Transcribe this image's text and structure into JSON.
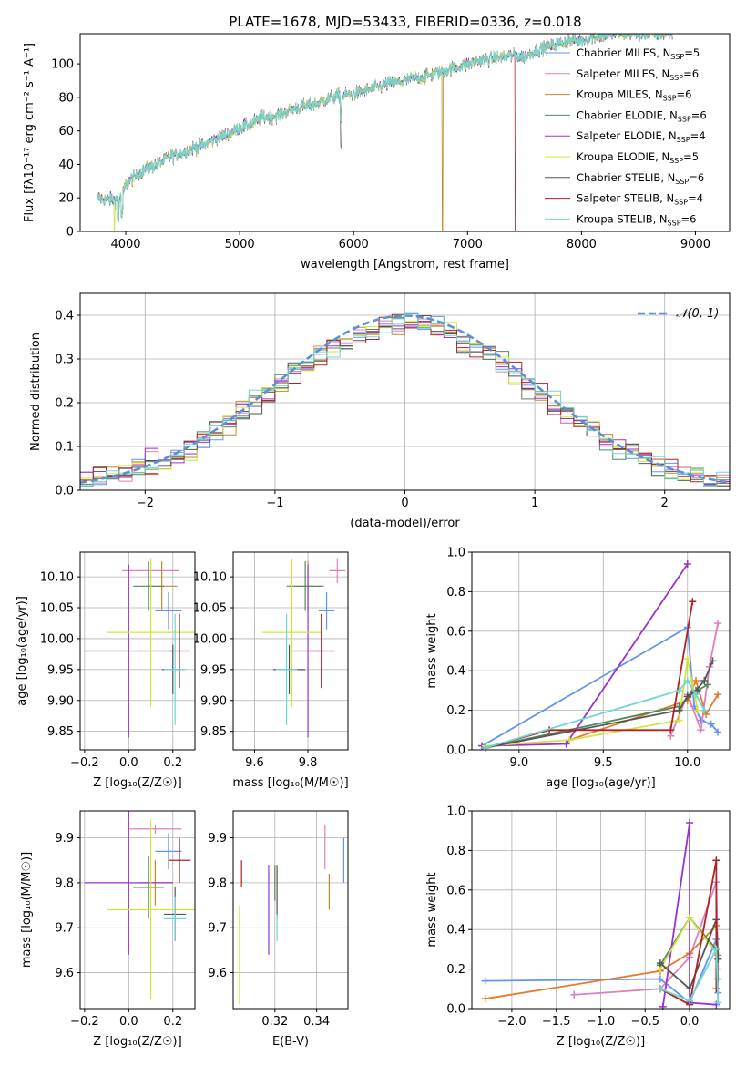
{
  "figure": {
    "title": "PLATE=1678, MJD=53433, FIBERID=0336, z=0.018"
  },
  "colors": {
    "Chabrier MILES": "#6495ed",
    "Salpeter MILES": "#e07ec0",
    "Kroupa MILES": "#c48a2a",
    "Chabrier ELODIE": "#4f8a5f",
    "Salpeter ELODIE": "#9932cc",
    "Kroupa ELODIE": "#d4e43a",
    "Chabrier STELIB": "#555555",
    "Salpeter STELIB": "#b22222",
    "Kroupa STELIB": "#6fd6d6",
    "orange": "#e8782a"
  },
  "chart_data": [
    {
      "id": "spectrum",
      "type": "line",
      "title": "PLATE=1678, MJD=53433, FIBERID=0336, z=0.018",
      "xlabel": "wavelength [Angstrom, rest frame]",
      "ylabel": "Flux [fλ10⁻¹⁷ erg cm⁻² s⁻¹ A⁻¹]",
      "xlim": [
        3600,
        9300
      ],
      "ylim": [
        0,
        118
      ],
      "xticks": [
        "4000",
        "5000",
        "6000",
        "7000",
        "8000",
        "9000"
      ],
      "yticks": [
        "0",
        "20",
        "40",
        "60",
        "80",
        "100"
      ],
      "legend_position": "top-right",
      "legend": [
        {
          "label": "Chabrier MILES, N",
          "sub": "SSP",
          "tail": "=5"
        },
        {
          "label": "Salpeter MILES, N",
          "sub": "SSP",
          "tail": "=6"
        },
        {
          "label": "Kroupa MILES, N",
          "sub": "SSP",
          "tail": "=6"
        },
        {
          "label": "Chabrier ELODIE, N",
          "sub": "SSP",
          "tail": "=6"
        },
        {
          "label": "Salpeter ELODIE, N",
          "sub": "SSP",
          "tail": "=4"
        },
        {
          "label": "Kroupa ELODIE, N",
          "sub": "SSP",
          "tail": "=5"
        },
        {
          "label": "Chabrier STELIB, N",
          "sub": "SSP",
          "tail": "=6"
        },
        {
          "label": "Salpeter STELIB, N",
          "sub": "SSP",
          "tail": "=4"
        },
        {
          "label": "Kroupa STELIB, N",
          "sub": "SSP",
          "tail": "=6"
        }
      ],
      "continuum": {
        "x": [
          3750,
          3850,
          3950,
          4000,
          4100,
          4200,
          4300,
          4400,
          4500,
          4600,
          4700,
          4800,
          4900,
          5000,
          5100,
          5200,
          5300,
          5400,
          5500,
          5600,
          5700,
          5800,
          5900,
          6000,
          6100,
          6200,
          6300,
          6400,
          6500,
          6600,
          6700,
          6800,
          6900,
          7000,
          7100,
          7200,
          7300,
          7400,
          7500,
          7600,
          7700,
          7800,
          7900,
          8000,
          8100,
          8200,
          8300,
          8400,
          8500,
          8600,
          8700,
          8800
        ],
        "y": [
          20,
          19,
          19,
          28,
          34,
          38,
          41,
          45,
          47,
          50,
          52,
          56,
          58,
          62,
          64,
          68,
          69,
          71,
          74,
          75,
          77,
          80,
          81,
          82,
          84,
          86,
          88,
          89,
          91,
          92,
          94,
          96,
          98,
          100,
          102,
          103,
          104,
          105,
          104,
          108,
          110,
          112,
          114,
          114,
          116,
          117,
          118,
          118,
          118,
          118,
          118,
          118
        ]
      },
      "dips": [
        {
          "series": "Kroupa ELODIE",
          "x": 3900,
          "y": 0
        },
        {
          "series": "Kroupa MILES",
          "x": 6780,
          "y": 0
        },
        {
          "series": "Salpeter STELIB",
          "x": 7420,
          "y": 0
        }
      ]
    },
    {
      "id": "residuals",
      "type": "histogram",
      "xlabel": "(data-model)/error",
      "ylabel": "Normed distribution",
      "xlim": [
        -2.5,
        2.5
      ],
      "ylim": [
        0,
        0.45
      ],
      "xticks": [
        "−2",
        "−1",
        "0",
        "1",
        "2"
      ],
      "yticks": [
        "0.0",
        "0.1",
        "0.2",
        "0.3",
        "0.4"
      ],
      "grid": true,
      "legend_position": "top-right",
      "reference": {
        "label": "𝒩(0, 1)",
        "mean": 0,
        "sigma": 1
      },
      "bin_width": 0.1
    },
    {
      "id": "age-vs-Z",
      "type": "scatter",
      "xlabel": "Z [log₁₀(Z/Z☉)]",
      "ylabel": "age  [log₁₀(age/yr)]",
      "xlim": [
        -0.22,
        0.3
      ],
      "ylim": [
        9.82,
        10.14
      ],
      "xticks": [
        "−0.2",
        "0.0",
        "0.2"
      ],
      "yticks": [
        "9.85",
        "9.90",
        "9.95",
        "10.00",
        "10.05",
        "10.10"
      ],
      "grid": true,
      "points": [
        {
          "series": "Chabrier MILES",
          "x": 0.18,
          "xerr": 0.06,
          "y": 10.045,
          "yerr": 0.03
        },
        {
          "series": "Salpeter MILES",
          "x": 0.1,
          "xerr": 0.13,
          "y": 10.11,
          "yerr": 0.02
        },
        {
          "series": "Kroupa MILES",
          "x": 0.15,
          "xerr": 0.07,
          "y": 10.085,
          "yerr": 0.04
        },
        {
          "series": "Chabrier ELODIE",
          "x": 0.09,
          "xerr": 0.07,
          "y": 10.085,
          "yerr": 0.04
        },
        {
          "series": "Salpeter ELODIE",
          "x": 0.0,
          "xerr": 0.2,
          "y": 9.98,
          "yerr": 0.14
        },
        {
          "series": "Kroupa ELODIE",
          "x": 0.1,
          "xerr": 0.2,
          "y": 10.01,
          "yerr": 0.12
        },
        {
          "series": "Chabrier STELIB",
          "x": 0.2,
          "xerr": 0.05,
          "y": 9.95,
          "yerr": 0.04
        },
        {
          "series": "Salpeter STELIB",
          "x": 0.23,
          "xerr": 0.05,
          "y": 9.98,
          "yerr": 0.06
        },
        {
          "series": "Kroupa STELIB",
          "x": 0.21,
          "xerr": 0.05,
          "y": 9.95,
          "yerr": 0.09
        }
      ]
    },
    {
      "id": "age-vs-mass",
      "type": "scatter",
      "xlabel": "mass [log₁₀(M/M☉)]",
      "ylabel": "",
      "xlim": [
        9.52,
        9.95
      ],
      "ylim": [
        9.82,
        10.14
      ],
      "xticks": [
        "9.6",
        "9.8"
      ],
      "yticks": [
        "9.85",
        "9.90",
        "9.95",
        "10.00",
        "10.05",
        "10.10"
      ],
      "grid": true,
      "points": [
        {
          "series": "Chabrier MILES",
          "x": 9.87,
          "xerr": 0.03,
          "y": 10.045,
          "yerr": 0.03
        },
        {
          "series": "Salpeter MILES",
          "x": 9.91,
          "xerr": 0.03,
          "y": 10.11,
          "yerr": 0.02
        },
        {
          "series": "Kroupa MILES",
          "x": 9.8,
          "xerr": 0.05,
          "y": 10.085,
          "yerr": 0.04
        },
        {
          "series": "Chabrier ELODIE",
          "x": 9.79,
          "xerr": 0.07,
          "y": 10.085,
          "yerr": 0.04
        },
        {
          "series": "Salpeter ELODIE",
          "x": 9.8,
          "xerr": 0.06,
          "y": 9.98,
          "yerr": 0.14
        },
        {
          "series": "Kroupa ELODIE",
          "x": 9.74,
          "xerr": 0.11,
          "y": 10.01,
          "yerr": 0.12
        },
        {
          "series": "Chabrier STELIB",
          "x": 9.73,
          "xerr": 0.06,
          "y": 9.95,
          "yerr": 0.04
        },
        {
          "series": "Salpeter STELIB",
          "x": 9.85,
          "xerr": 0.05,
          "y": 9.98,
          "yerr": 0.06
        },
        {
          "series": "Kroupa STELIB",
          "x": 9.72,
          "xerr": 0.04,
          "y": 9.95,
          "yerr": 0.09
        }
      ]
    },
    {
      "id": "weight-vs-age",
      "type": "line",
      "xlabel": "age  [log₁₀(age/yr)]",
      "ylabel": "mass weight",
      "xlim": [
        8.72,
        10.25
      ],
      "ylim": [
        0,
        1.0
      ],
      "xticks": [
        "9.0",
        "9.5",
        "10.0"
      ],
      "yticks": [
        "0.0",
        "0.2",
        "0.4",
        "0.6",
        "0.8",
        "1.0"
      ],
      "grid": true,
      "series": [
        {
          "name": "Chabrier MILES",
          "x": [
            8.78,
            10.0,
            10.04,
            10.08,
            10.14,
            10.18
          ],
          "y": [
            0.02,
            0.62,
            0.22,
            0.15,
            0.13,
            0.09
          ]
        },
        {
          "name": "Salpeter MILES",
          "x": [
            9.9,
            10.0,
            10.08,
            10.13,
            10.18
          ],
          "y": [
            0.07,
            0.28,
            0.1,
            0.42,
            0.64
          ]
        },
        {
          "name": "Kroupa MILES",
          "x": [
            9.3,
            10.0,
            10.05,
            10.11,
            10.18
          ],
          "y": [
            0.05,
            0.25,
            0.35,
            0.18,
            0.28
          ]
        },
        {
          "name": "Chabrier ELODIE",
          "x": [
            8.8,
            9.95,
            10.02,
            10.06,
            10.12
          ],
          "y": [
            0.01,
            0.22,
            0.28,
            0.3,
            0.33
          ]
        },
        {
          "name": "Salpeter ELODIE",
          "x": [
            8.78,
            9.28,
            10.0
          ],
          "y": [
            0.02,
            0.03,
            0.94
          ]
        },
        {
          "name": "Kroupa ELODIE",
          "x": [
            8.8,
            9.3,
            9.95,
            10.0,
            10.06
          ],
          "y": [
            0.02,
            0.05,
            0.15,
            0.46,
            0.2
          ]
        },
        {
          "name": "Chabrier STELIB",
          "x": [
            8.8,
            9.95,
            10.0,
            10.05,
            10.1,
            10.15
          ],
          "y": [
            0.01,
            0.2,
            0.27,
            0.3,
            0.35,
            0.45
          ]
        },
        {
          "name": "Salpeter STELIB",
          "x": [
            8.8,
            9.18,
            9.9,
            10.03
          ],
          "y": [
            0.01,
            0.1,
            0.1,
            0.75
          ]
        },
        {
          "name": "Kroupa STELIB",
          "x": [
            8.8,
            9.95,
            10.0,
            10.05,
            10.1
          ],
          "y": [
            0.01,
            0.3,
            0.35,
            0.28,
            0.2
          ]
        }
      ]
    },
    {
      "id": "mass-vs-Z",
      "type": "scatter",
      "xlabel": "Z [log₁₀(Z/Z☉)]",
      "ylabel": "mass [log₁₀(M/M☉)]",
      "xlim": [
        -0.22,
        0.3
      ],
      "ylim": [
        9.52,
        9.96
      ],
      "xticks": [
        "−0.2",
        "0.0",
        "0.2"
      ],
      "yticks": [
        "9.6",
        "9.7",
        "9.8",
        "9.9"
      ],
      "grid": true,
      "points": [
        {
          "series": "Chabrier MILES",
          "x": 0.18,
          "xerr": 0.06,
          "y": 9.87,
          "yerr": 0.04
        },
        {
          "series": "Salpeter MILES",
          "x": 0.12,
          "xerr": 0.12,
          "y": 9.92,
          "yerr": 0.01
        },
        {
          "series": "Kroupa MILES",
          "x": 0.12,
          "xerr": 0.08,
          "y": 9.8,
          "yerr": 0.05
        },
        {
          "series": "Chabrier ELODIE",
          "x": 0.09,
          "xerr": 0.07,
          "y": 9.79,
          "yerr": 0.07
        },
        {
          "series": "Salpeter ELODIE",
          "x": 0.0,
          "xerr": 0.2,
          "y": 9.8,
          "yerr": 0.16
        },
        {
          "series": "Kroupa ELODIE",
          "x": 0.1,
          "xerr": 0.2,
          "y": 9.74,
          "yerr": 0.2
        },
        {
          "series": "Chabrier STELIB",
          "x": 0.21,
          "xerr": 0.05,
          "y": 9.73,
          "yerr": 0.06
        },
        {
          "series": "Salpeter STELIB",
          "x": 0.23,
          "xerr": 0.05,
          "y": 9.85,
          "yerr": 0.05
        },
        {
          "series": "Kroupa STELIB",
          "x": 0.21,
          "xerr": 0.05,
          "y": 9.72,
          "yerr": 0.05
        }
      ]
    },
    {
      "id": "mass-vs-EBV",
      "type": "scatter",
      "xlabel": "E(B-V)",
      "ylabel": "",
      "xlim": [
        0.3,
        0.355
      ],
      "ylim": [
        9.52,
        9.96
      ],
      "xticks": [
        "0.32",
        "0.34"
      ],
      "yticks": [
        "9.6",
        "9.7",
        "9.8",
        "9.9"
      ],
      "grid": true,
      "points": [
        {
          "series": "Chabrier MILES",
          "x": 0.353,
          "y": 9.85,
          "yerr": 0.05
        },
        {
          "series": "Salpeter MILES",
          "x": 0.344,
          "y": 9.88,
          "yerr": 0.05
        },
        {
          "series": "Kroupa MILES",
          "x": 0.346,
          "y": 9.78,
          "yerr": 0.04
        },
        {
          "series": "Chabrier ELODIE",
          "x": 0.32,
          "y": 9.8,
          "yerr": 0.04
        },
        {
          "series": "Salpeter ELODIE",
          "x": 0.317,
          "y": 9.74,
          "yerr": 0.1
        },
        {
          "series": "Kroupa ELODIE",
          "x": 0.303,
          "y": 9.64,
          "yerr": 0.11
        },
        {
          "series": "Chabrier STELIB",
          "x": 0.321,
          "y": 9.78,
          "yerr": 0.06
        },
        {
          "series": "Salpeter STELIB",
          "x": 0.304,
          "y": 9.82,
          "yerr": 0.03
        },
        {
          "series": "Kroupa STELIB",
          "x": 0.321,
          "y": 9.7,
          "yerr": 0.03
        }
      ]
    },
    {
      "id": "weight-vs-Z",
      "type": "line",
      "xlabel": "Z [log₁₀(Z/Z☉)]",
      "ylabel": "mass weight",
      "xlim": [
        -2.45,
        0.45
      ],
      "ylim": [
        0,
        1.0
      ],
      "xticks": [
        "−2.0",
        "−1.5",
        "−1.0",
        "−0.5",
        "0.0"
      ],
      "yticks": [
        "0.0",
        "0.2",
        "0.4",
        "0.6",
        "0.8",
        "1.0"
      ],
      "grid": true,
      "series": [
        {
          "name": "Chabrier MILES",
          "x": [
            -2.3,
            -0.33,
            0.0,
            0.3,
            0.32
          ],
          "y": [
            0.14,
            0.15,
            0.03,
            0.35,
            0.08
          ]
        },
        {
          "name": "Salpeter MILES",
          "x": [
            -1.3,
            -0.33,
            0.0,
            0.3,
            0.32
          ],
          "y": [
            0.07,
            0.1,
            0.26,
            0.64,
            0.2
          ]
        },
        {
          "name": "Kroupa MILES",
          "x": [
            -2.3,
            -0.33,
            0.0,
            0.3,
            0.32
          ],
          "y": [
            0.05,
            0.19,
            0.28,
            0.42,
            0.27
          ]
        },
        {
          "name": "Chabrier ELODIE",
          "x": [
            -0.33,
            0.0,
            0.3,
            0.32
          ],
          "y": [
            0.22,
            0.46,
            0.3,
            0.15
          ]
        },
        {
          "name": "Salpeter ELODIE",
          "x": [
            -0.3,
            0.0,
            0.0,
            0.3
          ],
          "y": [
            0.01,
            0.94,
            0.03,
            0.02
          ]
        },
        {
          "name": "Kroupa ELODIE",
          "x": [
            -0.33,
            0.0,
            0.3
          ],
          "y": [
            0.2,
            0.46,
            0.28
          ]
        },
        {
          "name": "Chabrier STELIB",
          "x": [
            -0.33,
            0.0,
            0.3,
            0.32
          ],
          "y": [
            0.23,
            0.1,
            0.45,
            0.25
          ]
        },
        {
          "name": "Salpeter STELIB",
          "x": [
            -0.33,
            0.0,
            0.3,
            0.3
          ],
          "y": [
            0.1,
            0.02,
            0.75,
            0.1
          ]
        },
        {
          "name": "Kroupa STELIB",
          "x": [
            -0.33,
            0.0,
            0.3,
            0.32
          ],
          "y": [
            0.1,
            0.04,
            0.3,
            0.03
          ]
        }
      ]
    }
  ]
}
